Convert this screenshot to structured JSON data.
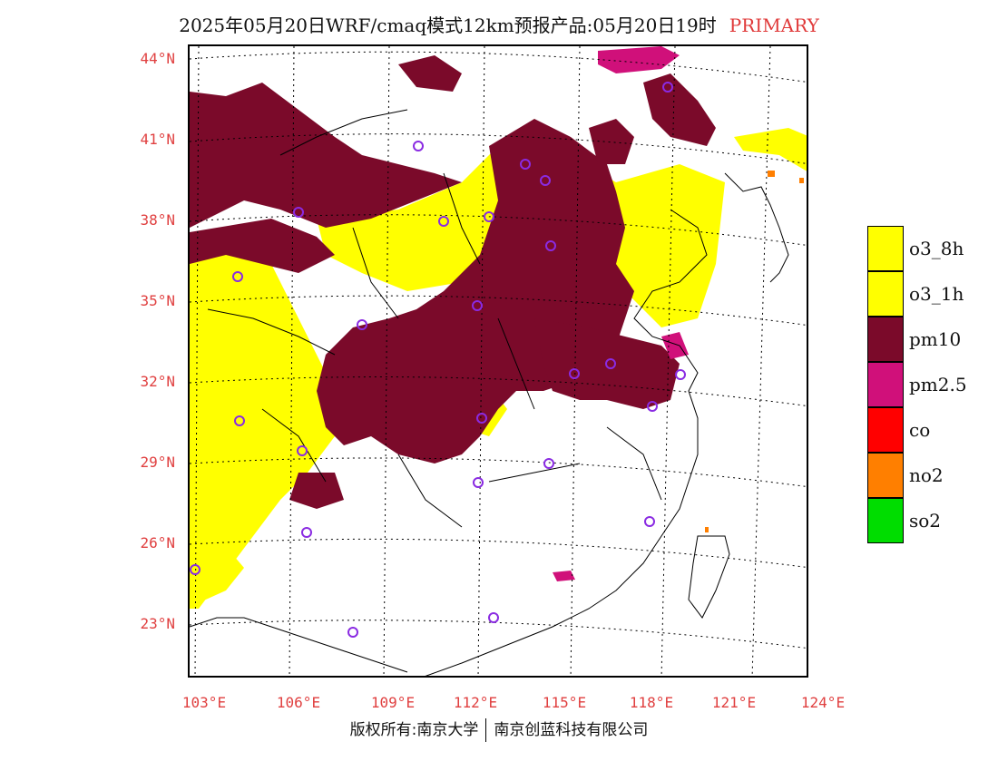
{
  "header": {
    "title": "2025年05月20日WRF/cmaq模式12km预报产品:05月20日19时",
    "badge": "PRIMARY"
  },
  "map": {
    "lat_labels": [
      "44°N",
      "41°N",
      "38°N",
      "35°N",
      "32°N",
      "29°N",
      "26°N",
      "23°N"
    ],
    "lon_labels": [
      "103°E",
      "106°E",
      "109°E",
      "112°E",
      "115°E",
      "118°E",
      "121°E",
      "124°E"
    ],
    "colors": {
      "o3_8h": "#ffff00",
      "o3_1h": "#ffff00",
      "pm10": "#7b0a2a",
      "pm2.5": "#d0107a",
      "co": "#ff0000",
      "no2": "#ff7f00",
      "so2": "#00dd00",
      "station_marker": "#8a2be2",
      "label_color": "#e04040"
    }
  },
  "legend": {
    "items": [
      {
        "label": "o3_8h",
        "color": "#ffff00"
      },
      {
        "label": "o3_1h",
        "color": "#ffff00"
      },
      {
        "label": "pm10",
        "color": "#7b0a2a"
      },
      {
        "label": "pm2.5",
        "color": "#d0107a"
      },
      {
        "label": "co",
        "color": "#ff0000"
      },
      {
        "label": "no2",
        "color": "#ff7f00"
      },
      {
        "label": "so2",
        "color": "#00dd00"
      }
    ]
  },
  "footer": {
    "left": "版权所有:南京大学",
    "right": "南京创蓝科技有限公司"
  }
}
